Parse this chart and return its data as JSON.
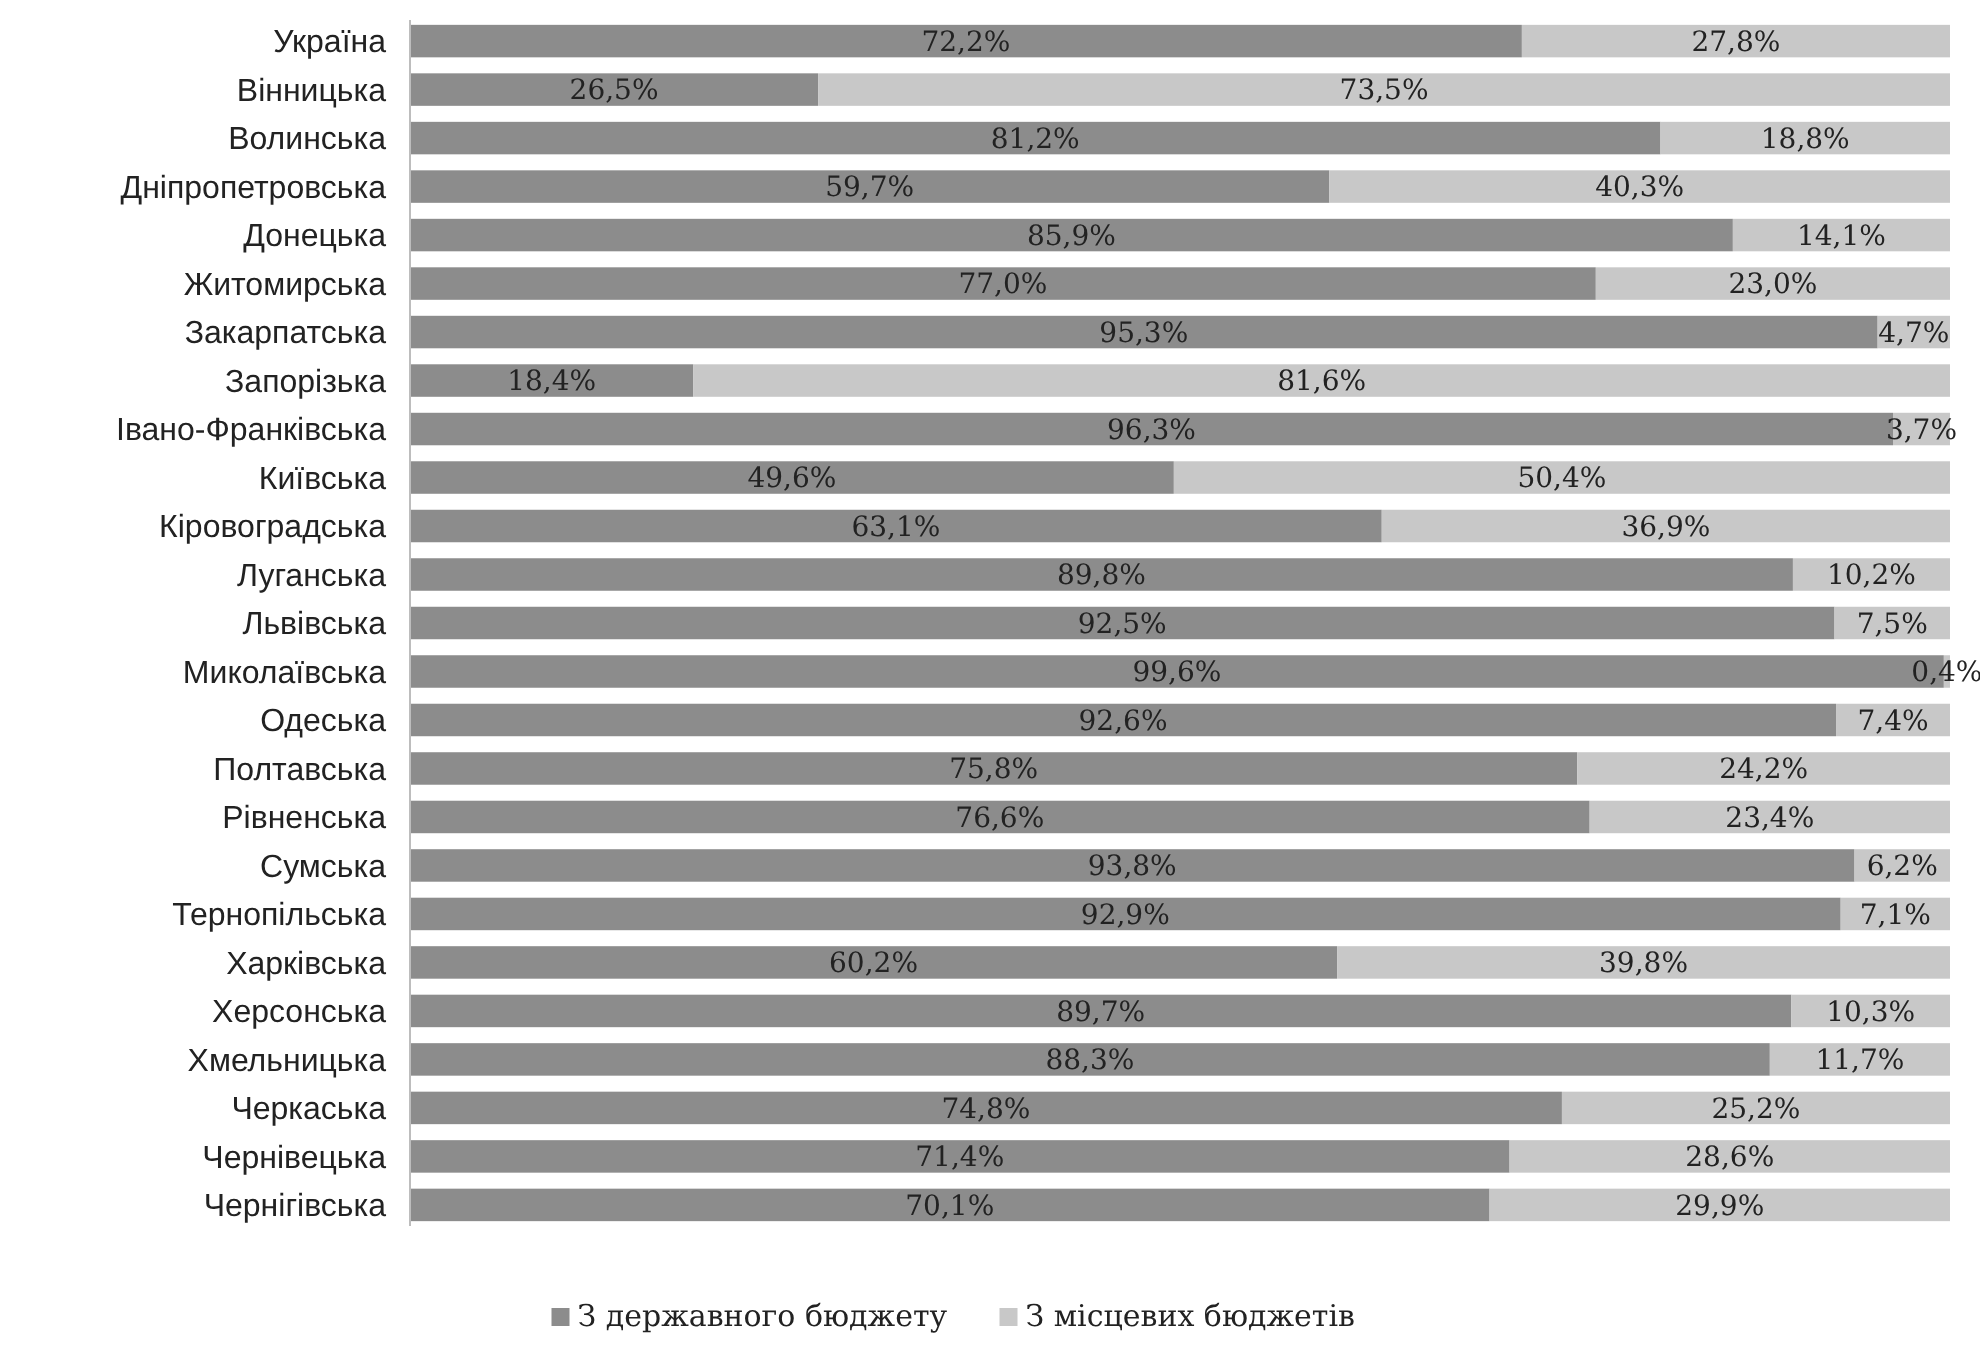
{
  "chart_data": {
    "type": "bar",
    "orientation": "horizontal",
    "stacked": true,
    "legend": "bottom",
    "categories": [
      "Україна",
      "Вінницька",
      "Волинська",
      "Дніпропетровська",
      "Донецька",
      "Житомирська",
      "Закарпатська",
      "Запорізька",
      "Івано-Франківська",
      "Київська",
      "Кіровоградська",
      "Луганська",
      "Львівська",
      "Миколаївська",
      "Одеська",
      "Полтавська",
      "Рівненська",
      "Сумська",
      "Тернопільська",
      "Харківська",
      "Херсонська",
      "Хмельницька",
      "Черкаська",
      "Чернівецька",
      "Чернігівська"
    ],
    "series": [
      {
        "name": "З державного бюджету",
        "color": "#8c8c8c",
        "values": [
          72.2,
          26.5,
          81.2,
          59.7,
          85.9,
          77.0,
          95.3,
          18.4,
          96.3,
          49.6,
          63.1,
          89.8,
          92.5,
          99.6,
          92.6,
          75.8,
          76.6,
          93.8,
          92.9,
          60.2,
          89.7,
          88.3,
          74.8,
          71.4,
          70.1
        ],
        "value_labels": [
          "72,2%",
          "26,5%",
          "81,2%",
          "59,7%",
          "85,9%",
          "77,0%",
          "95,3%",
          "18,4%",
          "96,3%",
          "49,6%",
          "63,1%",
          "89,8%",
          "92,5%",
          "99,6%",
          "92,6%",
          "75,8%",
          "76,6%",
          "93,8%",
          "92,9%",
          "60,2%",
          "89,7%",
          "88,3%",
          "74,8%",
          "71,4%",
          "70,1%"
        ]
      },
      {
        "name": "З місцевих бюджетів",
        "color": "#c8c8c8",
        "values": [
          27.8,
          73.5,
          18.8,
          40.3,
          14.1,
          23.0,
          4.7,
          81.6,
          3.7,
          50.4,
          36.9,
          10.2,
          7.5,
          0.4,
          7.4,
          24.2,
          23.4,
          6.2,
          7.1,
          39.8,
          10.3,
          11.7,
          25.2,
          28.6,
          29.9
        ],
        "value_labels": [
          "27,8%",
          "73,5%",
          "18,8%",
          "40,3%",
          "14,1%",
          "23,0%",
          "4,7%",
          "81,6%",
          "3,7%",
          "50,4%",
          "36,9%",
          "10,2%",
          "7,5%",
          "0,4%",
          "7,4%",
          "24,2%",
          "23,4%",
          "6,2%",
          "7,1%",
          "39,8%",
          "10,3%",
          "11,7%",
          "25,2%",
          "28,6%",
          "29,9%"
        ]
      }
    ]
  }
}
